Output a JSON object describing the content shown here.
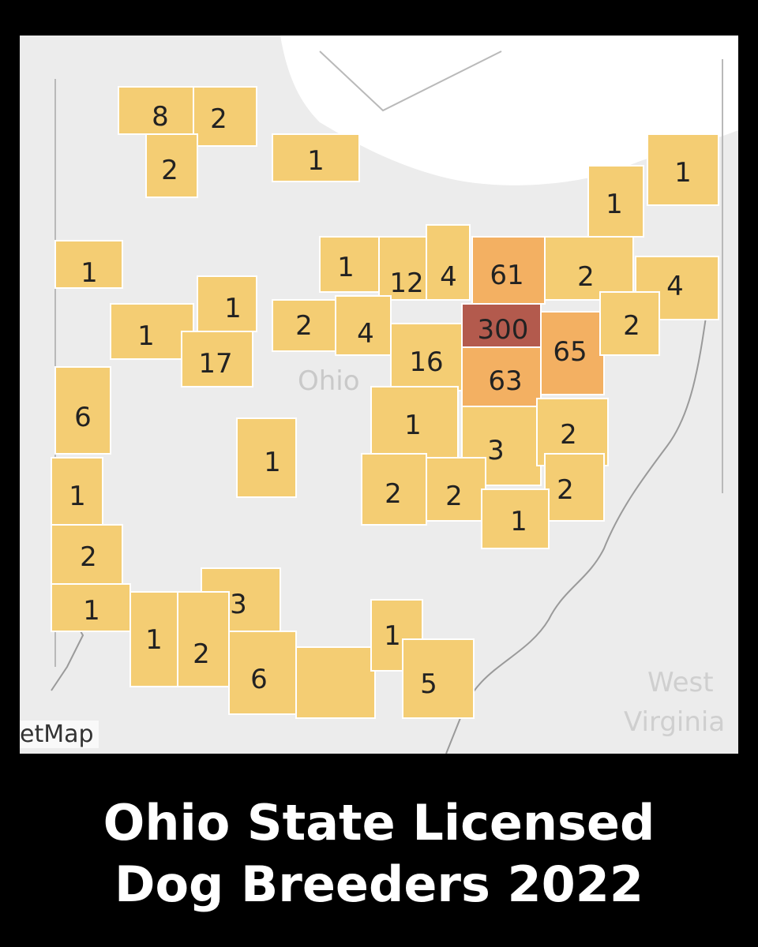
{
  "title_line1": "Ohio State Licensed",
  "title_line2": "Dog Breeders 2022",
  "map": {
    "state_label": "Ohio",
    "neighbor_label_line1": "West",
    "neighbor_label_line2": "Virginia",
    "attribution": "etMap",
    "colors": {
      "low": "#f4cd73",
      "mid": "#f3b062",
      "high": "#b35a4d",
      "background": "#ececec",
      "lake": "#ffffff"
    },
    "county_values": [
      8,
      2,
      2,
      1,
      1,
      1,
      1,
      1,
      12,
      4,
      61,
      2,
      4,
      1,
      1,
      2,
      4,
      300,
      65,
      2,
      17,
      16,
      63,
      6,
      1,
      3,
      2,
      1,
      1,
      2,
      2,
      2,
      1,
      2,
      1,
      3,
      1,
      2,
      6,
      null,
      1,
      5
    ]
  }
}
